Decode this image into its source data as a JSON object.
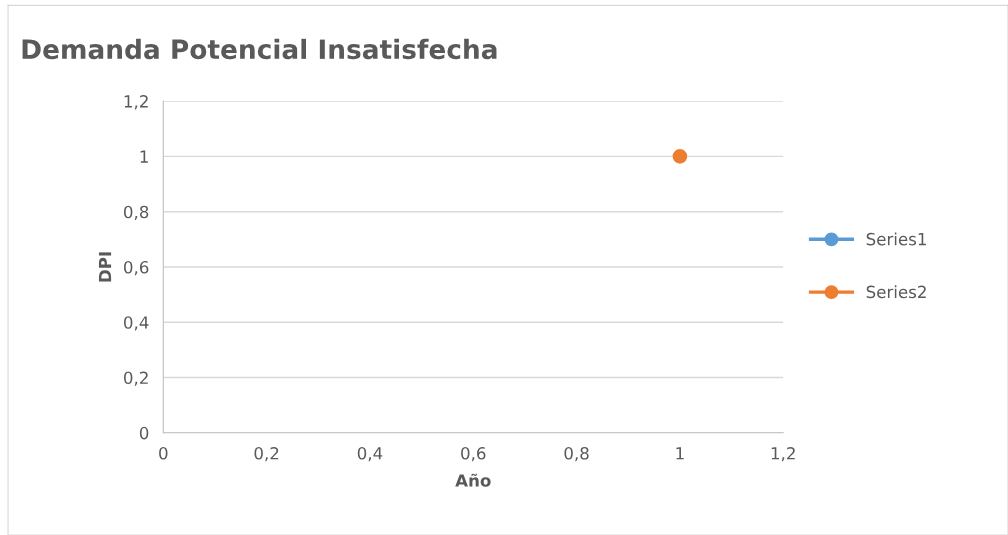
{
  "chart_data": {
    "type": "scatter",
    "title": "Demanda Potencial Insatisfecha",
    "xlabel": "Año",
    "ylabel": "DPI",
    "x": [
      1
    ],
    "series": [
      {
        "name": "Series1",
        "color": "#5b9bd5",
        "values": [
          null
        ]
      },
      {
        "name": "Series2",
        "color": "#ed7d31",
        "values": [
          1
        ]
      }
    ],
    "xlim": [
      0,
      1.2
    ],
    "ylim": [
      0,
      1.2
    ],
    "xticks": [
      0,
      {
        "value": 0.2,
        "label": "0,2"
      },
      {
        "value": 0.4,
        "label": "0,4"
      },
      {
        "value": 0.6,
        "label": "0,6"
      },
      {
        "value": 0.8,
        "label": "0,8"
      },
      1,
      {
        "value": 1.2,
        "label": "1,2"
      }
    ],
    "yticks": [
      0,
      {
        "value": 0.2,
        "label": "0,2"
      },
      {
        "value": 0.4,
        "label": "0,4"
      },
      {
        "value": 0.6,
        "label": "0,6"
      },
      {
        "value": 0.8,
        "label": "0,8"
      },
      1,
      {
        "value": 1.2,
        "label": "1,2"
      }
    ],
    "grid": "y",
    "legend": "right",
    "marker": "circle",
    "line_style": "solid"
  }
}
